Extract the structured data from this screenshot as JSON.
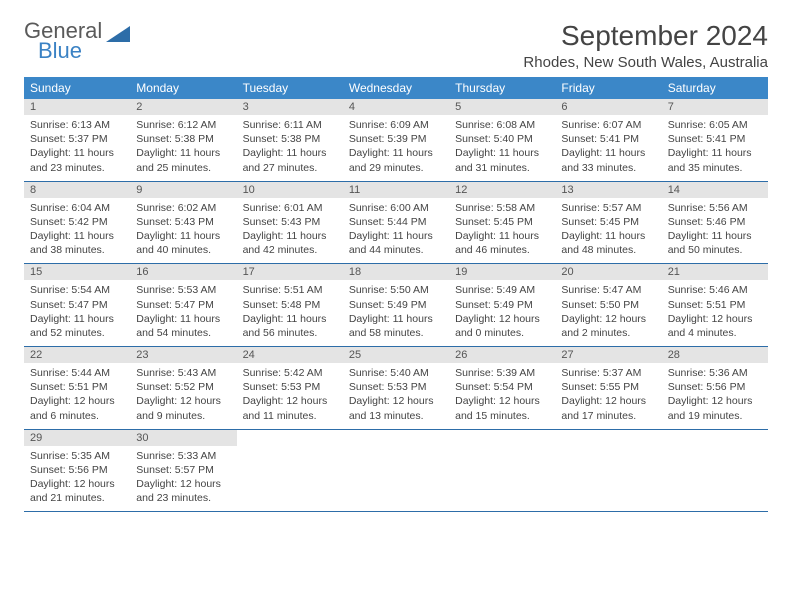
{
  "logo": {
    "word1": "General",
    "word2": "Blue",
    "shape_color": "#2d6da8"
  },
  "title": "September 2024",
  "location": "Rhodes, New South Wales, Australia",
  "colors": {
    "header_bg": "#3b87c8",
    "header_fg": "#ffffff",
    "daynum_bg": "#e4e4e4",
    "rule": "#2d6da8",
    "text": "#444444"
  },
  "day_headers": [
    "Sunday",
    "Monday",
    "Tuesday",
    "Wednesday",
    "Thursday",
    "Friday",
    "Saturday"
  ],
  "weeks": [
    [
      {
        "n": "1",
        "sr": "6:13 AM",
        "ss": "5:37 PM",
        "dl": "11 hours and 23 minutes."
      },
      {
        "n": "2",
        "sr": "6:12 AM",
        "ss": "5:38 PM",
        "dl": "11 hours and 25 minutes."
      },
      {
        "n": "3",
        "sr": "6:11 AM",
        "ss": "5:38 PM",
        "dl": "11 hours and 27 minutes."
      },
      {
        "n": "4",
        "sr": "6:09 AM",
        "ss": "5:39 PM",
        "dl": "11 hours and 29 minutes."
      },
      {
        "n": "5",
        "sr": "6:08 AM",
        "ss": "5:40 PM",
        "dl": "11 hours and 31 minutes."
      },
      {
        "n": "6",
        "sr": "6:07 AM",
        "ss": "5:41 PM",
        "dl": "11 hours and 33 minutes."
      },
      {
        "n": "7",
        "sr": "6:05 AM",
        "ss": "5:41 PM",
        "dl": "11 hours and 35 minutes."
      }
    ],
    [
      {
        "n": "8",
        "sr": "6:04 AM",
        "ss": "5:42 PM",
        "dl": "11 hours and 38 minutes."
      },
      {
        "n": "9",
        "sr": "6:02 AM",
        "ss": "5:43 PM",
        "dl": "11 hours and 40 minutes."
      },
      {
        "n": "10",
        "sr": "6:01 AM",
        "ss": "5:43 PM",
        "dl": "11 hours and 42 minutes."
      },
      {
        "n": "11",
        "sr": "6:00 AM",
        "ss": "5:44 PM",
        "dl": "11 hours and 44 minutes."
      },
      {
        "n": "12",
        "sr": "5:58 AM",
        "ss": "5:45 PM",
        "dl": "11 hours and 46 minutes."
      },
      {
        "n": "13",
        "sr": "5:57 AM",
        "ss": "5:45 PM",
        "dl": "11 hours and 48 minutes."
      },
      {
        "n": "14",
        "sr": "5:56 AM",
        "ss": "5:46 PM",
        "dl": "11 hours and 50 minutes."
      }
    ],
    [
      {
        "n": "15",
        "sr": "5:54 AM",
        "ss": "5:47 PM",
        "dl": "11 hours and 52 minutes."
      },
      {
        "n": "16",
        "sr": "5:53 AM",
        "ss": "5:47 PM",
        "dl": "11 hours and 54 minutes."
      },
      {
        "n": "17",
        "sr": "5:51 AM",
        "ss": "5:48 PM",
        "dl": "11 hours and 56 minutes."
      },
      {
        "n": "18",
        "sr": "5:50 AM",
        "ss": "5:49 PM",
        "dl": "11 hours and 58 minutes."
      },
      {
        "n": "19",
        "sr": "5:49 AM",
        "ss": "5:49 PM",
        "dl": "12 hours and 0 minutes."
      },
      {
        "n": "20",
        "sr": "5:47 AM",
        "ss": "5:50 PM",
        "dl": "12 hours and 2 minutes."
      },
      {
        "n": "21",
        "sr": "5:46 AM",
        "ss": "5:51 PM",
        "dl": "12 hours and 4 minutes."
      }
    ],
    [
      {
        "n": "22",
        "sr": "5:44 AM",
        "ss": "5:51 PM",
        "dl": "12 hours and 6 minutes."
      },
      {
        "n": "23",
        "sr": "5:43 AM",
        "ss": "5:52 PM",
        "dl": "12 hours and 9 minutes."
      },
      {
        "n": "24",
        "sr": "5:42 AM",
        "ss": "5:53 PM",
        "dl": "12 hours and 11 minutes."
      },
      {
        "n": "25",
        "sr": "5:40 AM",
        "ss": "5:53 PM",
        "dl": "12 hours and 13 minutes."
      },
      {
        "n": "26",
        "sr": "5:39 AM",
        "ss": "5:54 PM",
        "dl": "12 hours and 15 minutes."
      },
      {
        "n": "27",
        "sr": "5:37 AM",
        "ss": "5:55 PM",
        "dl": "12 hours and 17 minutes."
      },
      {
        "n": "28",
        "sr": "5:36 AM",
        "ss": "5:56 PM",
        "dl": "12 hours and 19 minutes."
      }
    ],
    [
      {
        "n": "29",
        "sr": "5:35 AM",
        "ss": "5:56 PM",
        "dl": "12 hours and 21 minutes."
      },
      {
        "n": "30",
        "sr": "5:33 AM",
        "ss": "5:57 PM",
        "dl": "12 hours and 23 minutes."
      },
      null,
      null,
      null,
      null,
      null
    ]
  ],
  "labels": {
    "sunrise": "Sunrise:",
    "sunset": "Sunset:",
    "daylight": "Daylight:"
  }
}
